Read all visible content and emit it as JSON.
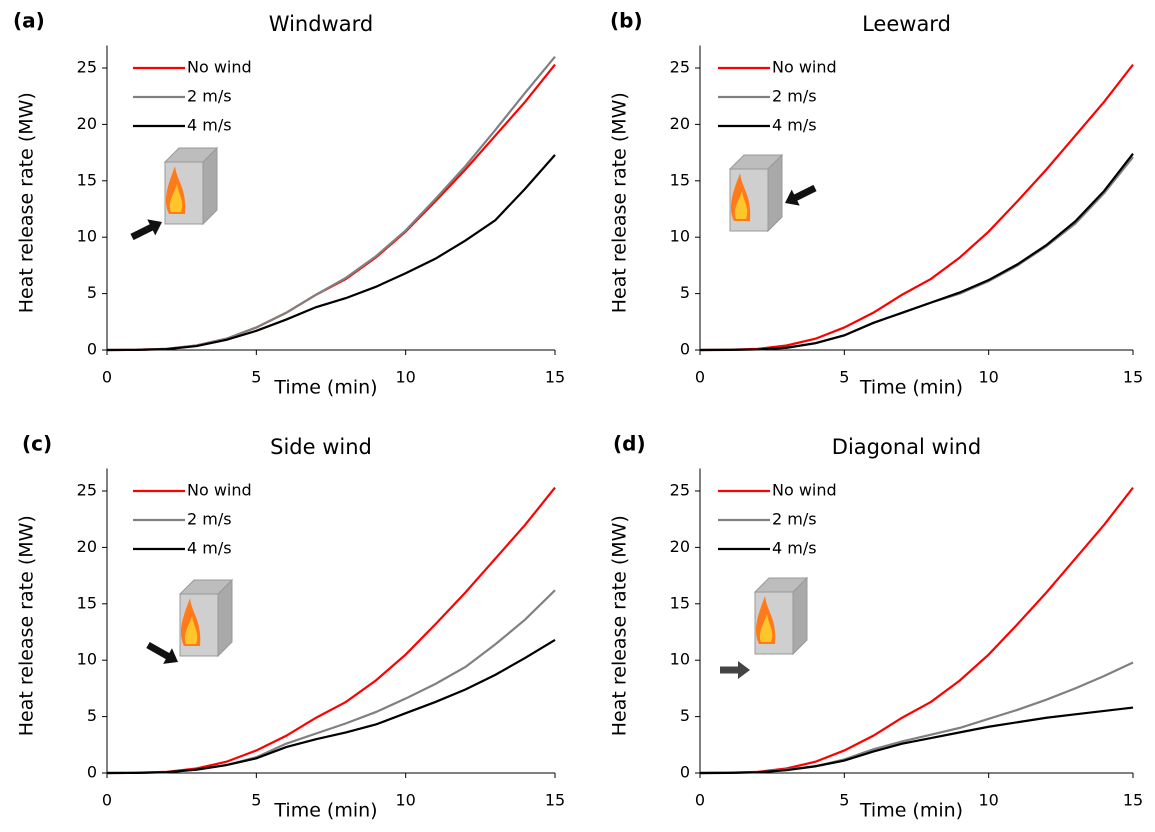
{
  "chart_data": [
    {
      "type": "line",
      "label": "(a)",
      "title": "Windward",
      "xlabel": "Time (min)",
      "ylabel": "Heat release rate (MW)",
      "x": [
        0,
        1,
        2,
        3,
        4,
        5,
        6,
        7,
        8,
        9,
        10,
        11,
        12,
        13,
        14,
        15
      ],
      "xlim": [
        0,
        15
      ],
      "xticks": [
        0,
        5,
        10,
        15
      ],
      "ylim": [
        0,
        27
      ],
      "yticks": [
        0,
        5,
        10,
        15,
        20,
        25
      ],
      "series": [
        {
          "name": "No wind",
          "color": "#ff0000",
          "values": [
            0,
            0.02,
            0.1,
            0.4,
            1.0,
            2.0,
            3.3,
            4.9,
            6.3,
            8.2,
            10.5,
            13.2,
            16.0,
            19.0,
            22.0,
            25.3
          ]
        },
        {
          "name": "2 m/s",
          "color": "#808080",
          "values": [
            0,
            0.02,
            0.1,
            0.4,
            1.0,
            2.0,
            3.3,
            4.9,
            6.4,
            8.3,
            10.6,
            13.4,
            16.3,
            19.5,
            22.8,
            26.0
          ]
        },
        {
          "name": "4 m/s",
          "color": "#000000",
          "values": [
            0,
            0.01,
            0.08,
            0.35,
            0.9,
            1.7,
            2.7,
            3.8,
            4.6,
            5.6,
            6.8,
            8.1,
            9.7,
            11.5,
            14.3,
            17.3
          ]
        }
      ]
    },
    {
      "type": "line",
      "label": "(b)",
      "title": "Leeward",
      "xlabel": "Time (min)",
      "ylabel": "Heat release rate (MW)",
      "x": [
        0,
        1,
        2,
        3,
        4,
        5,
        6,
        7,
        8,
        9,
        10,
        11,
        12,
        13,
        14,
        15
      ],
      "xlim": [
        0,
        15
      ],
      "xticks": [
        0,
        5,
        10,
        15
      ],
      "ylim": [
        0,
        27
      ],
      "yticks": [
        0,
        5,
        10,
        15,
        20,
        25
      ],
      "series": [
        {
          "name": "No wind",
          "color": "#ff0000",
          "values": [
            0,
            0.02,
            0.1,
            0.4,
            1.0,
            2.0,
            3.3,
            4.9,
            6.3,
            8.2,
            10.5,
            13.2,
            16.0,
            19.0,
            22.0,
            25.3
          ]
        },
        {
          "name": "2 m/s",
          "color": "#808080",
          "values": [
            0,
            0.01,
            0.05,
            0.2,
            0.6,
            1.3,
            2.4,
            3.3,
            4.2,
            5.0,
            6.1,
            7.5,
            9.2,
            11.2,
            13.9,
            17.1
          ]
        },
        {
          "name": "4 m/s",
          "color": "#000000",
          "values": [
            0,
            0.01,
            0.05,
            0.2,
            0.6,
            1.3,
            2.4,
            3.3,
            4.2,
            5.1,
            6.2,
            7.6,
            9.3,
            11.4,
            14.1,
            17.4
          ]
        }
      ]
    },
    {
      "type": "line",
      "label": "(c)",
      "title": "Side wind",
      "xlabel": "Time (min)",
      "ylabel": "Heat release rate (MW)",
      "x": [
        0,
        1,
        2,
        3,
        4,
        5,
        6,
        7,
        8,
        9,
        10,
        11,
        12,
        13,
        14,
        15
      ],
      "xlim": [
        0,
        15
      ],
      "xticks": [
        0,
        5,
        10,
        15
      ],
      "ylim": [
        0,
        27
      ],
      "yticks": [
        0,
        5,
        10,
        15,
        20,
        25
      ],
      "series": [
        {
          "name": "No wind",
          "color": "#ff0000",
          "values": [
            0,
            0.02,
            0.1,
            0.4,
            1.0,
            2.0,
            3.3,
            4.9,
            6.3,
            8.2,
            10.5,
            13.2,
            16.0,
            19.0,
            22.0,
            25.3
          ]
        },
        {
          "name": "2 m/s",
          "color": "#808080",
          "values": [
            0,
            0.01,
            0.08,
            0.3,
            0.7,
            1.4,
            2.6,
            3.5,
            4.4,
            5.4,
            6.6,
            7.9,
            9.4,
            11.4,
            13.6,
            16.2
          ]
        },
        {
          "name": "4 m/s",
          "color": "#000000",
          "values": [
            0,
            0.01,
            0.07,
            0.3,
            0.7,
            1.3,
            2.3,
            3.0,
            3.6,
            4.3,
            5.3,
            6.3,
            7.4,
            8.7,
            10.2,
            11.8
          ]
        }
      ]
    },
    {
      "type": "line",
      "label": "(d)",
      "title": "Diagonal wind",
      "xlabel": "Time (min)",
      "ylabel": "Heat release rate (MW)",
      "x": [
        0,
        1,
        2,
        3,
        4,
        5,
        6,
        7,
        8,
        9,
        10,
        11,
        12,
        13,
        14,
        15
      ],
      "xlim": [
        0,
        15
      ],
      "xticks": [
        0,
        5,
        10,
        15
      ],
      "ylim": [
        0,
        27
      ],
      "yticks": [
        0,
        5,
        10,
        15,
        20,
        25
      ],
      "series": [
        {
          "name": "No wind",
          "color": "#ff0000",
          "values": [
            0,
            0.02,
            0.1,
            0.4,
            1.0,
            2.0,
            3.3,
            4.9,
            6.3,
            8.2,
            10.5,
            13.2,
            16.0,
            19.0,
            22.0,
            25.3
          ]
        },
        {
          "name": "2 m/s",
          "color": "#808080",
          "values": [
            0,
            0.01,
            0.07,
            0.3,
            0.6,
            1.2,
            2.1,
            2.8,
            3.4,
            4.0,
            4.8,
            5.6,
            6.5,
            7.5,
            8.6,
            9.8
          ]
        },
        {
          "name": "4 m/s",
          "color": "#000000",
          "values": [
            0,
            0.01,
            0.06,
            0.25,
            0.6,
            1.1,
            1.9,
            2.6,
            3.1,
            3.6,
            4.1,
            4.5,
            4.9,
            5.2,
            5.5,
            5.8
          ]
        }
      ]
    }
  ]
}
